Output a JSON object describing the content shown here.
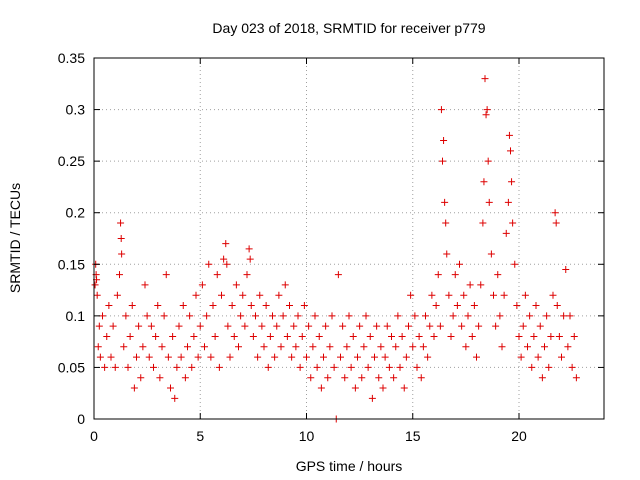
{
  "chart_data": {
    "type": "scatter",
    "title": "Day 023 of 2018, SRMTID for receiver p779",
    "xlabel": "GPS time / hours",
    "ylabel": "SRMTID / TECUs",
    "xlim": [
      0,
      24
    ],
    "ylim": [
      0,
      0.35
    ],
    "xticks": [
      0,
      5,
      10,
      15,
      20
    ],
    "xtick_labels": [
      "0",
      "5",
      "10",
      "15",
      "20"
    ],
    "yticks": [
      0,
      0.05,
      0.1,
      0.15,
      0.2,
      0.25,
      0.3,
      0.35
    ],
    "ytick_labels": [
      "0",
      "0.05",
      "0.1",
      "0.15",
      "0.2",
      "0.25",
      "0.3",
      "0.35"
    ],
    "grid": true,
    "marker": "+",
    "color": "#dd0000",
    "series": [
      {
        "name": "SRMTID",
        "points": [
          [
            0.05,
            0.13
          ],
          [
            0.08,
            0.15
          ],
          [
            0.1,
            0.14
          ],
          [
            0.12,
            0.135
          ],
          [
            0.15,
            0.12
          ],
          [
            0.2,
            0.07
          ],
          [
            0.25,
            0.09
          ],
          [
            0.3,
            0.06
          ],
          [
            0.4,
            0.1
          ],
          [
            0.5,
            0.05
          ],
          [
            0.6,
            0.08
          ],
          [
            0.7,
            0.11
          ],
          [
            0.8,
            0.06
          ],
          [
            0.9,
            0.09
          ],
          [
            1.0,
            0.05
          ],
          [
            1.1,
            0.12
          ],
          [
            1.2,
            0.14
          ],
          [
            1.25,
            0.19
          ],
          [
            1.28,
            0.175
          ],
          [
            1.3,
            0.16
          ],
          [
            1.4,
            0.07
          ],
          [
            1.5,
            0.1
          ],
          [
            1.6,
            0.05
          ],
          [
            1.7,
            0.08
          ],
          [
            1.8,
            0.11
          ],
          [
            1.9,
            0.03
          ],
          [
            2.0,
            0.06
          ],
          [
            2.1,
            0.09
          ],
          [
            2.2,
            0.04
          ],
          [
            2.3,
            0.07
          ],
          [
            2.4,
            0.13
          ],
          [
            2.5,
            0.1
          ],
          [
            2.6,
            0.06
          ],
          [
            2.7,
            0.09
          ],
          [
            2.8,
            0.05
          ],
          [
            2.9,
            0.08
          ],
          [
            3.0,
            0.11
          ],
          [
            3.1,
            0.04
          ],
          [
            3.2,
            0.07
          ],
          [
            3.3,
            0.1
          ],
          [
            3.4,
            0.14
          ],
          [
            3.5,
            0.06
          ],
          [
            3.6,
            0.03
          ],
          [
            3.7,
            0.08
          ],
          [
            3.8,
            0.02
          ],
          [
            3.9,
            0.05
          ],
          [
            4.0,
            0.09
          ],
          [
            4.1,
            0.06
          ],
          [
            4.2,
            0.11
          ],
          [
            4.3,
            0.04
          ],
          [
            4.4,
            0.07
          ],
          [
            4.5,
            0.1
          ],
          [
            4.6,
            0.05
          ],
          [
            4.7,
            0.08
          ],
          [
            4.8,
            0.12
          ],
          [
            4.9,
            0.06
          ],
          [
            5.0,
            0.09
          ],
          [
            5.1,
            0.13
          ],
          [
            5.2,
            0.07
          ],
          [
            5.3,
            0.1
          ],
          [
            5.4,
            0.15
          ],
          [
            5.5,
            0.06
          ],
          [
            5.6,
            0.11
          ],
          [
            5.7,
            0.08
          ],
          [
            5.8,
            0.14
          ],
          [
            5.9,
            0.05
          ],
          [
            6.0,
            0.12
          ],
          [
            6.1,
            0.155
          ],
          [
            6.2,
            0.17
          ],
          [
            6.25,
            0.15
          ],
          [
            6.3,
            0.09
          ],
          [
            6.4,
            0.06
          ],
          [
            6.5,
            0.11
          ],
          [
            6.6,
            0.08
          ],
          [
            6.7,
            0.13
          ],
          [
            6.8,
            0.07
          ],
          [
            6.9,
            0.1
          ],
          [
            7.0,
            0.12
          ],
          [
            7.1,
            0.09
          ],
          [
            7.2,
            0.14
          ],
          [
            7.3,
            0.165
          ],
          [
            7.35,
            0.155
          ],
          [
            7.4,
            0.11
          ],
          [
            7.5,
            0.08
          ],
          [
            7.6,
            0.1
          ],
          [
            7.7,
            0.06
          ],
          [
            7.8,
            0.12
          ],
          [
            7.9,
            0.09
          ],
          [
            8.0,
            0.07
          ],
          [
            8.1,
            0.11
          ],
          [
            8.2,
            0.05
          ],
          [
            8.3,
            0.08
          ],
          [
            8.4,
            0.1
          ],
          [
            8.5,
            0.06
          ],
          [
            8.6,
            0.09
          ],
          [
            8.7,
            0.12
          ],
          [
            8.8,
            0.07
          ],
          [
            8.9,
            0.1
          ],
          [
            9.0,
            0.13
          ],
          [
            9.1,
            0.08
          ],
          [
            9.2,
            0.11
          ],
          [
            9.3,
            0.06
          ],
          [
            9.4,
            0.09
          ],
          [
            9.5,
            0.07
          ],
          [
            9.6,
            0.1
          ],
          [
            9.7,
            0.05
          ],
          [
            9.8,
            0.08
          ],
          [
            9.9,
            0.11
          ],
          [
            10.0,
            0.06
          ],
          [
            10.1,
            0.09
          ],
          [
            10.2,
            0.04
          ],
          [
            10.3,
            0.07
          ],
          [
            10.4,
            0.1
          ],
          [
            10.5,
            0.05
          ],
          [
            10.6,
            0.08
          ],
          [
            10.7,
            0.03
          ],
          [
            10.8,
            0.06
          ],
          [
            10.9,
            0.09
          ],
          [
            11.0,
            0.04
          ],
          [
            11.1,
            0.07
          ],
          [
            11.2,
            0.1
          ],
          [
            11.3,
            0.05
          ],
          [
            11.4,
            0.0
          ],
          [
            11.5,
            0.14
          ],
          [
            11.6,
            0.06
          ],
          [
            11.7,
            0.09
          ],
          [
            11.8,
            0.04
          ],
          [
            11.9,
            0.07
          ],
          [
            12.0,
            0.1
          ],
          [
            12.1,
            0.05
          ],
          [
            12.2,
            0.08
          ],
          [
            12.3,
            0.03
          ],
          [
            12.4,
            0.06
          ],
          [
            12.5,
            0.09
          ],
          [
            12.6,
            0.04
          ],
          [
            12.7,
            0.07
          ],
          [
            12.8,
            0.1
          ],
          [
            12.9,
            0.05
          ],
          [
            13.0,
            0.08
          ],
          [
            13.1,
            0.02
          ],
          [
            13.2,
            0.06
          ],
          [
            13.3,
            0.09
          ],
          [
            13.4,
            0.04
          ],
          [
            13.5,
            0.07
          ],
          [
            13.6,
            0.03
          ],
          [
            13.7,
            0.06
          ],
          [
            13.8,
            0.09
          ],
          [
            13.9,
            0.05
          ],
          [
            14.0,
            0.08
          ],
          [
            14.1,
            0.04
          ],
          [
            14.2,
            0.07
          ],
          [
            14.3,
            0.1
          ],
          [
            14.4,
            0.05
          ],
          [
            14.5,
            0.08
          ],
          [
            14.6,
            0.03
          ],
          [
            14.7,
            0.06
          ],
          [
            14.8,
            0.09
          ],
          [
            14.9,
            0.12
          ],
          [
            15.0,
            0.07
          ],
          [
            15.1,
            0.1
          ],
          [
            15.2,
            0.05
          ],
          [
            15.3,
            0.08
          ],
          [
            15.4,
            0.04
          ],
          [
            15.5,
            0.07
          ],
          [
            15.6,
            0.1
          ],
          [
            15.7,
            0.06
          ],
          [
            15.8,
            0.09
          ],
          [
            15.9,
            0.12
          ],
          [
            16.0,
            0.08
          ],
          [
            16.1,
            0.11
          ],
          [
            16.2,
            0.14
          ],
          [
            16.3,
            0.09
          ],
          [
            16.35,
            0.3
          ],
          [
            16.4,
            0.25
          ],
          [
            16.45,
            0.27
          ],
          [
            16.5,
            0.21
          ],
          [
            16.55,
            0.19
          ],
          [
            16.6,
            0.16
          ],
          [
            16.7,
            0.12
          ],
          [
            16.8,
            0.08
          ],
          [
            16.9,
            0.1
          ],
          [
            17.0,
            0.14
          ],
          [
            17.1,
            0.11
          ],
          [
            17.2,
            0.15
          ],
          [
            17.3,
            0.09
          ],
          [
            17.4,
            0.12
          ],
          [
            17.5,
            0.07
          ],
          [
            17.6,
            0.1
          ],
          [
            17.7,
            0.13
          ],
          [
            17.8,
            0.08
          ],
          [
            17.9,
            0.11
          ],
          [
            18.0,
            0.06
          ],
          [
            18.1,
            0.09
          ],
          [
            18.2,
            0.13
          ],
          [
            18.3,
            0.19
          ],
          [
            18.35,
            0.23
          ],
          [
            18.4,
            0.33
          ],
          [
            18.45,
            0.295
          ],
          [
            18.5,
            0.3
          ],
          [
            18.55,
            0.25
          ],
          [
            18.6,
            0.21
          ],
          [
            18.7,
            0.16
          ],
          [
            18.8,
            0.12
          ],
          [
            18.9,
            0.09
          ],
          [
            19.0,
            0.14
          ],
          [
            19.1,
            0.1
          ],
          [
            19.2,
            0.07
          ],
          [
            19.3,
            0.12
          ],
          [
            19.4,
            0.18
          ],
          [
            19.5,
            0.21
          ],
          [
            19.55,
            0.275
          ],
          [
            19.6,
            0.26
          ],
          [
            19.65,
            0.23
          ],
          [
            19.7,
            0.19
          ],
          [
            19.8,
            0.15
          ],
          [
            19.9,
            0.11
          ],
          [
            20.0,
            0.08
          ],
          [
            20.1,
            0.06
          ],
          [
            20.2,
            0.09
          ],
          [
            20.3,
            0.12
          ],
          [
            20.4,
            0.07
          ],
          [
            20.5,
            0.1
          ],
          [
            20.6,
            0.05
          ],
          [
            20.7,
            0.08
          ],
          [
            20.8,
            0.11
          ],
          [
            20.9,
            0.06
          ],
          [
            21.0,
            0.09
          ],
          [
            21.1,
            0.04
          ],
          [
            21.2,
            0.07
          ],
          [
            21.3,
            0.1
          ],
          [
            21.4,
            0.05
          ],
          [
            21.5,
            0.08
          ],
          [
            21.6,
            0.12
          ],
          [
            21.7,
            0.2
          ],
          [
            21.75,
            0.19
          ],
          [
            21.8,
            0.11
          ],
          [
            21.9,
            0.08
          ],
          [
            22.0,
            0.06
          ],
          [
            22.1,
            0.1
          ],
          [
            22.2,
            0.145
          ],
          [
            22.3,
            0.07
          ],
          [
            22.4,
            0.1
          ],
          [
            22.5,
            0.05
          ],
          [
            22.6,
            0.08
          ],
          [
            22.7,
            0.04
          ]
        ]
      }
    ]
  }
}
